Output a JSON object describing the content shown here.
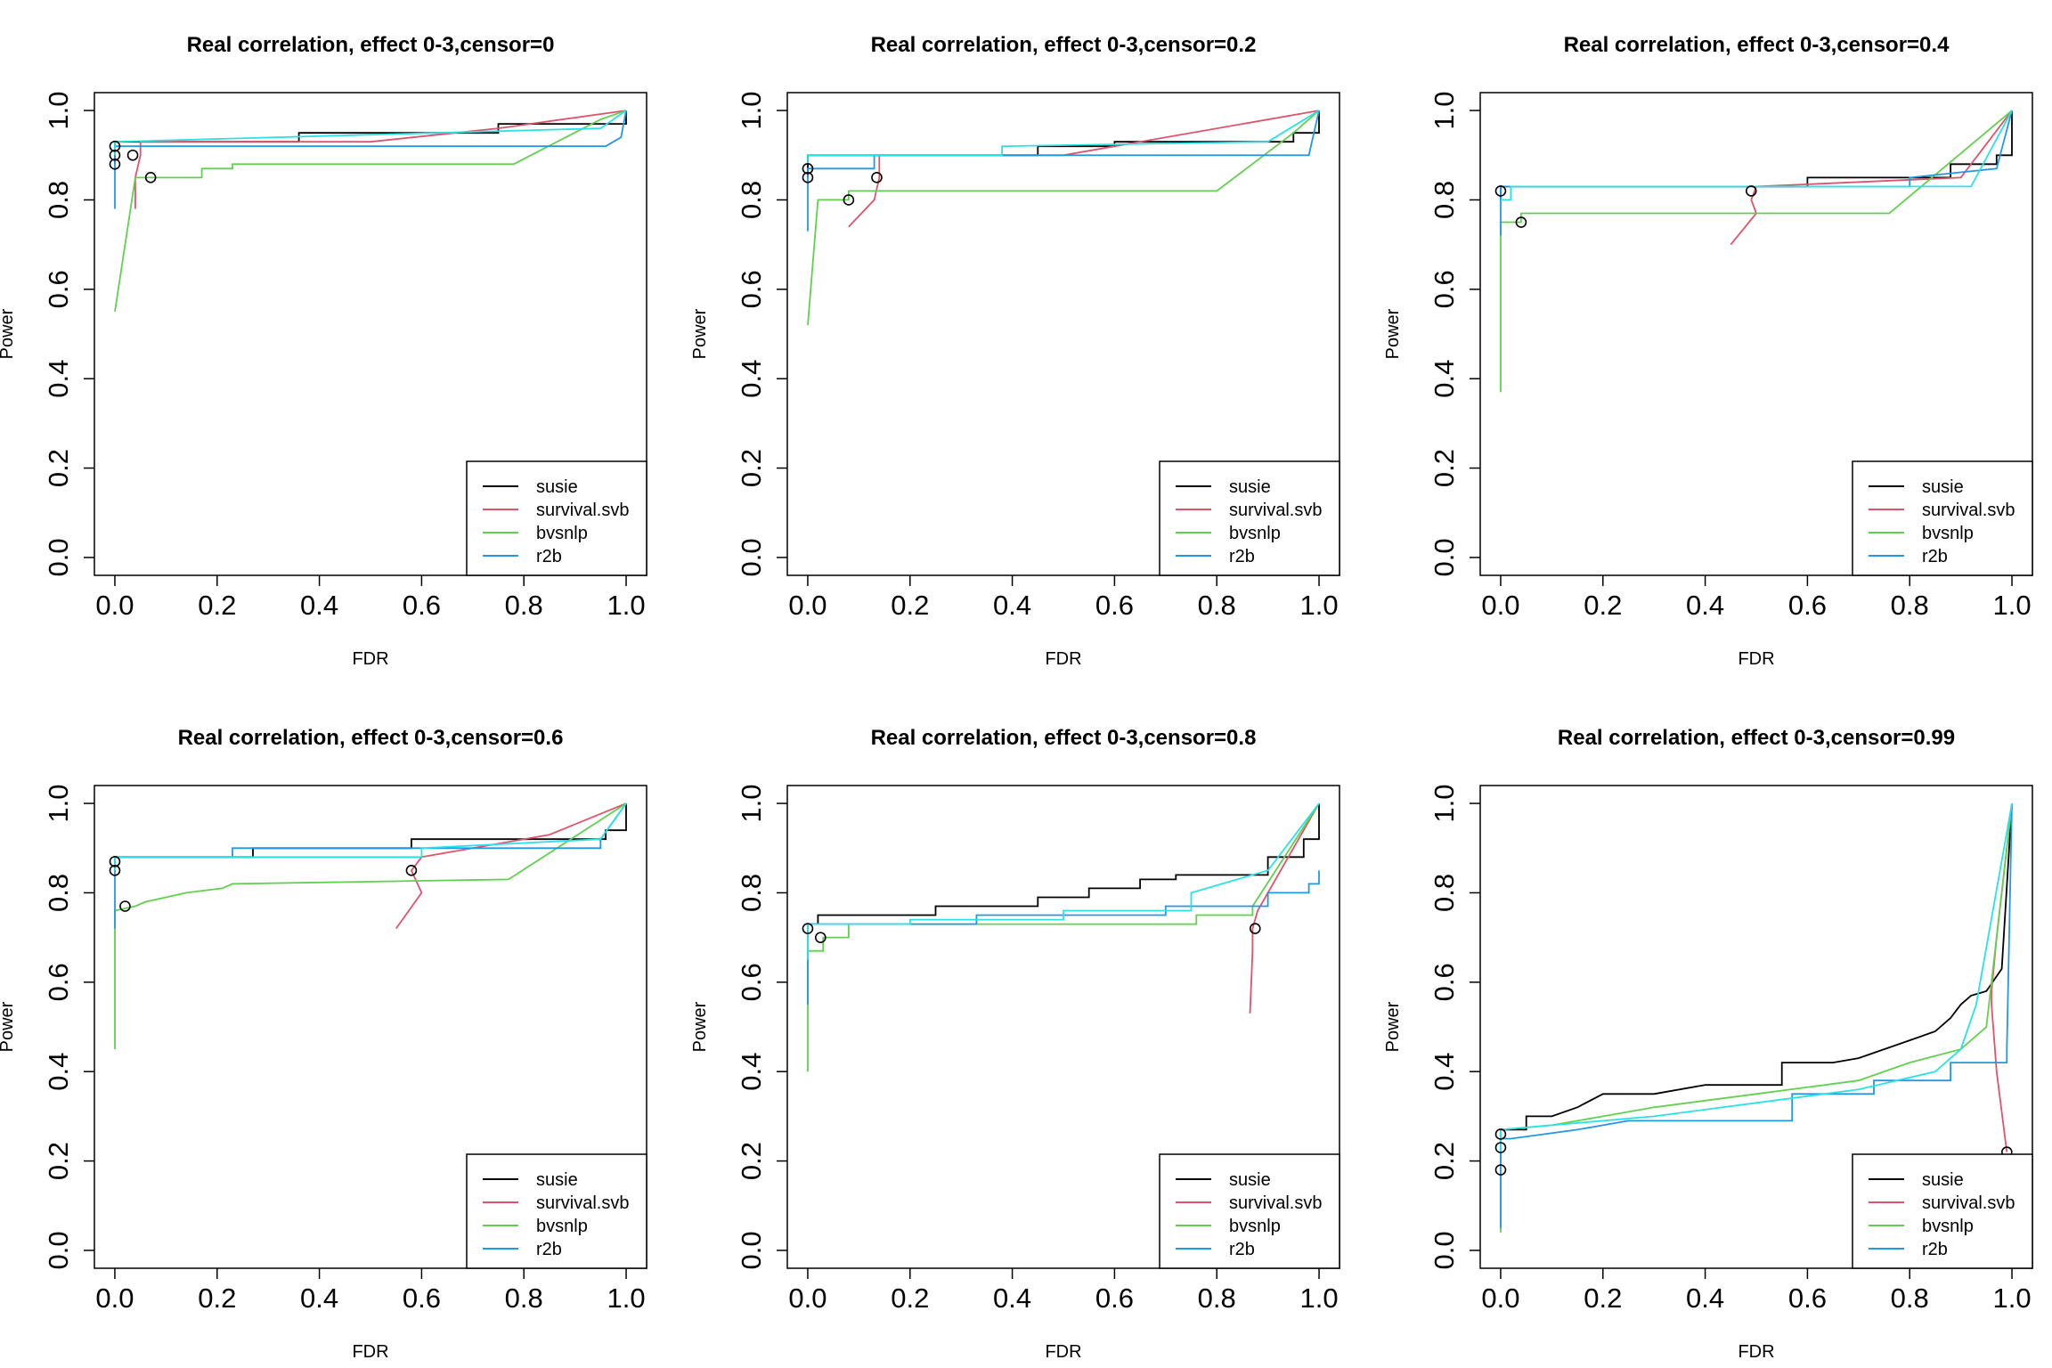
{
  "colors": {
    "susie": "#000000",
    "survival.svb": "#DF536B",
    "bvsnlp": "#61D04F",
    "r2b": "#2297E6",
    "r2b_alt": "#28E2E5"
  },
  "chart_data": [
    {
      "type": "line",
      "title": "Real correlation, effect 0-3,censor=0",
      "xlabel": "FDR",
      "ylabel": "Power",
      "xlim": [
        0,
        1
      ],
      "ylim": [
        0,
        1
      ],
      "xticks": [
        "0.0",
        "0.2",
        "0.4",
        "0.6",
        "0.8",
        "1.0"
      ],
      "yticks": [
        "0.0",
        "0.2",
        "0.4",
        "0.6",
        "0.8",
        "1.0"
      ],
      "legend_position": "bottom-right",
      "legend": [
        "susie",
        "survival.svb",
        "bvsnlp",
        "r2b"
      ],
      "series": [
        {
          "name": "susie",
          "color": "#000000",
          "x": [
            0,
            0,
            0.36,
            0.36,
            0.48,
            0.48,
            0.75,
            0.75,
            0.95,
            0.95,
            1.0,
            1.0
          ],
          "y": [
            0.88,
            0.93,
            0.93,
            0.95,
            0.95,
            0.95,
            0.95,
            0.97,
            0.97,
            0.97,
            0.97,
            1.0
          ]
        },
        {
          "name": "survival.svb",
          "color": "#DF536B",
          "x": [
            0.04,
            0.04,
            0.05,
            0.05,
            0.5,
            0.75,
            1.0
          ],
          "y": [
            0.78,
            0.85,
            0.9,
            0.93,
            0.93,
            0.96,
            1.0
          ]
        },
        {
          "name": "bvsnlp",
          "color": "#61D04F",
          "x": [
            0,
            0.04,
            0.07,
            0.17,
            0.17,
            0.23,
            0.23,
            0.78,
            0.95,
            1.0
          ],
          "y": [
            0.55,
            0.85,
            0.85,
            0.85,
            0.87,
            0.87,
            0.88,
            0.88,
            0.98,
            1.0
          ]
        },
        {
          "name": "r2b",
          "color": "#2297E6",
          "x": [
            0,
            0,
            0,
            0.96,
            0.99,
            1.0
          ],
          "y": [
            0.78,
            0.88,
            0.92,
            0.92,
            0.94,
            1.0
          ]
        },
        {
          "name": "",
          "color": "#28E2E5",
          "x": [
            0,
            0,
            0.95,
            1.0
          ],
          "y": [
            0.9,
            0.93,
            0.96,
            1.0
          ]
        }
      ],
      "points": [
        {
          "x": 0,
          "y": 0.92
        },
        {
          "x": 0,
          "y": 0.9
        },
        {
          "x": 0,
          "y": 0.88
        },
        {
          "x": 0.035,
          "y": 0.9
        },
        {
          "x": 0.07,
          "y": 0.85
        }
      ]
    },
    {
      "type": "line",
      "title": "Real correlation, effect 0-3,censor=0.2",
      "xlabel": "FDR",
      "ylabel": "Power",
      "xlim": [
        0,
        1
      ],
      "ylim": [
        0,
        1
      ],
      "xticks": [
        "0.0",
        "0.2",
        "0.4",
        "0.6",
        "0.8",
        "1.0"
      ],
      "yticks": [
        "0.0",
        "0.2",
        "0.4",
        "0.6",
        "0.8",
        "1.0"
      ],
      "legend_position": "bottom-right",
      "legend": [
        "susie",
        "survival.svb",
        "bvsnlp",
        "r2b"
      ],
      "series": [
        {
          "name": "susie",
          "color": "#000000",
          "x": [
            0,
            0,
            0.45,
            0.45,
            0.6,
            0.6,
            0.95,
            0.95,
            1.0,
            1.0
          ],
          "y": [
            0.85,
            0.9,
            0.9,
            0.92,
            0.92,
            0.93,
            0.93,
            0.95,
            0.95,
            1.0
          ]
        },
        {
          "name": "survival.svb",
          "color": "#DF536B",
          "x": [
            0.08,
            0.13,
            0.14,
            0.14,
            0.5,
            1.0
          ],
          "y": [
            0.74,
            0.8,
            0.85,
            0.9,
            0.9,
            1.0
          ]
        },
        {
          "name": "bvsnlp",
          "color": "#61D04F",
          "x": [
            0,
            0.02,
            0.08,
            0.08,
            0.8,
            0.95,
            1.0
          ],
          "y": [
            0.52,
            0.8,
            0.8,
            0.82,
            0.82,
            0.95,
            1.0
          ]
        },
        {
          "name": "r2b",
          "color": "#2297E6",
          "x": [
            0,
            0,
            0.13,
            0.13,
            0.98,
            1.0
          ],
          "y": [
            0.73,
            0.87,
            0.87,
            0.9,
            0.9,
            1.0
          ]
        },
        {
          "name": "",
          "color": "#28E2E5",
          "x": [
            0,
            0,
            0.38,
            0.38,
            0.9,
            1.0
          ],
          "y": [
            0.88,
            0.9,
            0.9,
            0.92,
            0.93,
            1.0
          ]
        }
      ],
      "points": [
        {
          "x": 0,
          "y": 0.87
        },
        {
          "x": 0,
          "y": 0.85
        },
        {
          "x": 0.08,
          "y": 0.8
        },
        {
          "x": 0.135,
          "y": 0.85
        }
      ]
    },
    {
      "type": "line",
      "title": "Real correlation, effect 0-3,censor=0.4",
      "xlabel": "FDR",
      "ylabel": "Power",
      "xlim": [
        0,
        1
      ],
      "ylim": [
        0,
        1
      ],
      "xticks": [
        "0.0",
        "0.2",
        "0.4",
        "0.6",
        "0.8",
        "1.0"
      ],
      "yticks": [
        "0.0",
        "0.2",
        "0.4",
        "0.6",
        "0.8",
        "1.0"
      ],
      "legend_position": "bottom-right",
      "legend": [
        "susie",
        "survival.svb",
        "bvsnlp",
        "r2b"
      ],
      "series": [
        {
          "name": "susie",
          "color": "#000000",
          "x": [
            0,
            0,
            0.6,
            0.6,
            0.88,
            0.88,
            0.97,
            0.97,
            1.0,
            1.0
          ],
          "y": [
            0.8,
            0.83,
            0.83,
            0.85,
            0.85,
            0.88,
            0.88,
            0.9,
            0.9,
            1.0
          ]
        },
        {
          "name": "survival.svb",
          "color": "#DF536B",
          "x": [
            0.45,
            0.5,
            0.49,
            0.5,
            0.9,
            1.0
          ],
          "y": [
            0.7,
            0.77,
            0.8,
            0.83,
            0.85,
            1.0
          ]
        },
        {
          "name": "bvsnlp",
          "color": "#61D04F",
          "x": [
            0,
            0,
            0.04,
            0.04,
            0.76,
            1.0
          ],
          "y": [
            0.37,
            0.75,
            0.75,
            0.77,
            0.77,
            1.0
          ]
        },
        {
          "name": "r2b",
          "color": "#2297E6",
          "x": [
            0,
            0,
            0.8,
            0.8,
            0.97,
            1.0
          ],
          "y": [
            0.72,
            0.83,
            0.83,
            0.85,
            0.87,
            1.0
          ]
        },
        {
          "name": "",
          "color": "#28E2E5",
          "x": [
            0,
            0.02,
            0.02,
            0.92,
            1.0
          ],
          "y": [
            0.8,
            0.8,
            0.83,
            0.83,
            1.0
          ]
        }
      ],
      "points": [
        {
          "x": 0,
          "y": 0.82
        },
        {
          "x": 0.04,
          "y": 0.75
        },
        {
          "x": 0.49,
          "y": 0.82
        }
      ]
    },
    {
      "type": "line",
      "title": "Real correlation, effect 0-3,censor=0.6",
      "xlabel": "FDR",
      "ylabel": "Power",
      "xlim": [
        0,
        1
      ],
      "ylim": [
        0,
        1
      ],
      "xticks": [
        "0.0",
        "0.2",
        "0.4",
        "0.6",
        "0.8",
        "1.0"
      ],
      "yticks": [
        "0.0",
        "0.2",
        "0.4",
        "0.6",
        "0.8",
        "1.0"
      ],
      "legend_position": "bottom-right",
      "legend": [
        "susie",
        "survival.svb",
        "bvsnlp",
        "r2b"
      ],
      "series": [
        {
          "name": "susie",
          "color": "#000000",
          "x": [
            0,
            0,
            0.27,
            0.27,
            0.58,
            0.58,
            0.96,
            0.96,
            1.0,
            1.0
          ],
          "y": [
            0.85,
            0.88,
            0.88,
            0.9,
            0.9,
            0.92,
            0.92,
            0.94,
            0.94,
            1.0
          ]
        },
        {
          "name": "survival.svb",
          "color": "#DF536B",
          "x": [
            0.55,
            0.6,
            0.58,
            0.6,
            0.85,
            1.0
          ],
          "y": [
            0.72,
            0.8,
            0.85,
            0.88,
            0.93,
            1.0
          ]
        },
        {
          "name": "bvsnlp",
          "color": "#61D04F",
          "x": [
            0,
            0,
            0.04,
            0.06,
            0.1,
            0.14,
            0.21,
            0.23,
            0.77,
            1.0
          ],
          "y": [
            0.45,
            0.76,
            0.77,
            0.78,
            0.79,
            0.8,
            0.81,
            0.82,
            0.83,
            1.0
          ]
        },
        {
          "name": "r2b",
          "color": "#2297E6",
          "x": [
            0,
            0,
            0.23,
            0.23,
            0.95,
            0.95,
            1.0
          ],
          "y": [
            0.72,
            0.88,
            0.88,
            0.9,
            0.9,
            0.92,
            1.0
          ]
        },
        {
          "name": "",
          "color": "#28E2E5",
          "x": [
            0,
            0,
            0.6,
            0.6,
            0.95,
            1.0
          ],
          "y": [
            0.85,
            0.88,
            0.88,
            0.9,
            0.92,
            1.0
          ]
        }
      ],
      "points": [
        {
          "x": 0,
          "y": 0.87
        },
        {
          "x": 0,
          "y": 0.85
        },
        {
          "x": 0.02,
          "y": 0.77
        },
        {
          "x": 0.58,
          "y": 0.85
        }
      ]
    },
    {
      "type": "line",
      "title": "Real correlation, effect 0-3,censor=0.8",
      "xlabel": "FDR",
      "ylabel": "Power",
      "xlim": [
        0,
        1
      ],
      "ylim": [
        0,
        1
      ],
      "xticks": [
        "0.0",
        "0.2",
        "0.4",
        "0.6",
        "0.8",
        "1.0"
      ],
      "yticks": [
        "0.0",
        "0.2",
        "0.4",
        "0.6",
        "0.8",
        "1.0"
      ],
      "legend_position": "bottom-right",
      "legend": [
        "susie",
        "survival.svb",
        "bvsnlp",
        "r2b"
      ],
      "series": [
        {
          "name": "susie",
          "color": "#000000",
          "x": [
            0,
            0,
            0.02,
            0.02,
            0.25,
            0.25,
            0.45,
            0.45,
            0.55,
            0.55,
            0.65,
            0.65,
            0.72,
            0.72,
            0.9,
            0.9,
            0.97,
            0.97,
            1.0,
            1.0
          ],
          "y": [
            0.7,
            0.73,
            0.73,
            0.75,
            0.75,
            0.77,
            0.77,
            0.79,
            0.79,
            0.81,
            0.81,
            0.83,
            0.83,
            0.84,
            0.84,
            0.88,
            0.88,
            0.92,
            0.92,
            1.0
          ]
        },
        {
          "name": "survival.svb",
          "color": "#DF536B",
          "x": [
            0.865,
            0.87,
            0.87,
            0.88,
            1.0
          ],
          "y": [
            0.53,
            0.67,
            0.72,
            0.76,
            1.0
          ]
        },
        {
          "name": "bvsnlp",
          "color": "#61D04F",
          "x": [
            0,
            0,
            0.03,
            0.03,
            0.08,
            0.08,
            0.76,
            0.76,
            0.87,
            0.87,
            1.0
          ],
          "y": [
            0.4,
            0.67,
            0.67,
            0.7,
            0.7,
            0.73,
            0.73,
            0.75,
            0.75,
            0.77,
            1.0
          ]
        },
        {
          "name": "r2b",
          "color": "#2297E6",
          "x": [
            0,
            0,
            0.33,
            0.33,
            0.7,
            0.7,
            0.9,
            0.9,
            0.98,
            0.98,
            1.0,
            1.0
          ],
          "y": [
            0.55,
            0.73,
            0.73,
            0.75,
            0.75,
            0.77,
            0.77,
            0.8,
            0.8,
            0.82,
            0.82,
            0.85
          ]
        },
        {
          "name": "",
          "color": "#28E2E5",
          "x": [
            0,
            0,
            0.2,
            0.2,
            0.5,
            0.5,
            0.75,
            0.75,
            0.9,
            1.0
          ],
          "y": [
            0.65,
            0.73,
            0.73,
            0.74,
            0.74,
            0.76,
            0.76,
            0.8,
            0.85,
            1.0
          ]
        }
      ],
      "points": [
        {
          "x": 0,
          "y": 0.72
        },
        {
          "x": 0.025,
          "y": 0.7
        },
        {
          "x": 0.875,
          "y": 0.72
        }
      ]
    },
    {
      "type": "line",
      "title": "Real correlation, effect 0-3,censor=0.99",
      "xlabel": "FDR",
      "ylabel": "Power",
      "xlim": [
        0,
        1
      ],
      "ylim": [
        0,
        1
      ],
      "xticks": [
        "0.0",
        "0.2",
        "0.4",
        "0.6",
        "0.8",
        "1.0"
      ],
      "yticks": [
        "0.0",
        "0.2",
        "0.4",
        "0.6",
        "0.8",
        "1.0"
      ],
      "legend_position": "bottom-right",
      "legend": [
        "susie",
        "survival.svb",
        "bvsnlp",
        "r2b"
      ],
      "series": [
        {
          "name": "susie",
          "color": "#000000",
          "x": [
            0,
            0,
            0.05,
            0.05,
            0.1,
            0.15,
            0.2,
            0.3,
            0.4,
            0.55,
            0.55,
            0.65,
            0.7,
            0.75,
            0.8,
            0.85,
            0.88,
            0.9,
            0.92,
            0.95,
            0.98,
            1.0
          ],
          "y": [
            0.2,
            0.27,
            0.27,
            0.3,
            0.3,
            0.32,
            0.35,
            0.35,
            0.37,
            0.37,
            0.42,
            0.42,
            0.43,
            0.45,
            0.47,
            0.49,
            0.52,
            0.55,
            0.57,
            0.58,
            0.63,
            1.0
          ]
        },
        {
          "name": "survival.svb",
          "color": "#DF536B",
          "x": [
            0.99,
            0.97,
            0.96,
            0.96,
            0.97,
            1.0
          ],
          "y": [
            0.22,
            0.4,
            0.55,
            0.58,
            0.7,
            1.0
          ]
        },
        {
          "name": "bvsnlp",
          "color": "#61D04F",
          "x": [
            0,
            0,
            0.1,
            0.2,
            0.3,
            0.5,
            0.7,
            0.8,
            0.9,
            0.95,
            1.0
          ],
          "y": [
            0.04,
            0.27,
            0.28,
            0.3,
            0.32,
            0.35,
            0.38,
            0.42,
            0.45,
            0.5,
            1.0
          ]
        },
        {
          "name": "r2b",
          "color": "#2297E6",
          "x": [
            0,
            0,
            0.02,
            0.15,
            0.25,
            0.57,
            0.57,
            0.73,
            0.73,
            0.88,
            0.88,
            0.99,
            0.99,
            1.0
          ],
          "y": [
            0.05,
            0.25,
            0.25,
            0.27,
            0.29,
            0.29,
            0.35,
            0.35,
            0.38,
            0.38,
            0.42,
            0.42,
            0.45,
            1.0
          ]
        },
        {
          "name": "",
          "color": "#28E2E5",
          "x": [
            0,
            0,
            0.1,
            0.3,
            0.5,
            0.7,
            0.85,
            0.9,
            0.93,
            1.0
          ],
          "y": [
            0.22,
            0.27,
            0.28,
            0.3,
            0.33,
            0.36,
            0.4,
            0.45,
            0.55,
            1.0
          ]
        }
      ],
      "points": [
        {
          "x": 0,
          "y": 0.26
        },
        {
          "x": 0,
          "y": 0.23
        },
        {
          "x": 0,
          "y": 0.18
        },
        {
          "x": 0.99,
          "y": 0.22
        }
      ]
    }
  ]
}
